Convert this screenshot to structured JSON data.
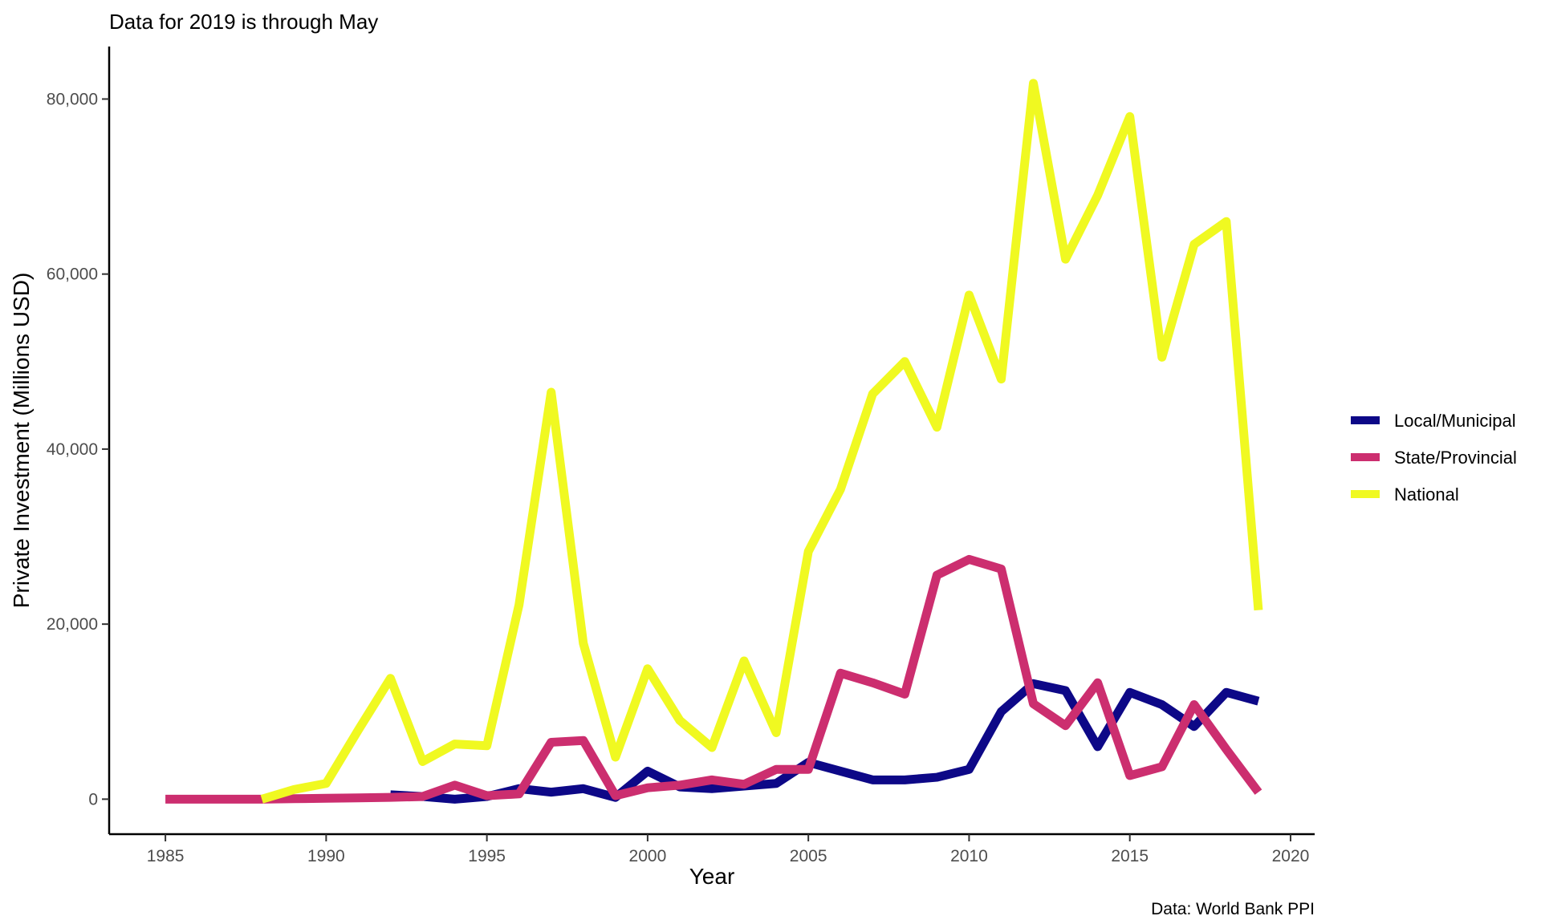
{
  "chart_data": {
    "type": "line",
    "title": "Data for 2019 is through May",
    "xlabel": "Year",
    "ylabel": "Private Investment (Millions USD)",
    "caption": "Data: World Bank PPI",
    "xlim": [
      1983.25,
      2020.75
    ],
    "ylim": [
      -4000,
      86000
    ],
    "x_ticks": [
      1985,
      1990,
      1995,
      2000,
      2005,
      2010,
      2015,
      2020
    ],
    "x_tick_labels": [
      "1985",
      "1990",
      "1995",
      "2000",
      "2005",
      "2010",
      "2015",
      "2020"
    ],
    "y_ticks": [
      0,
      20000,
      40000,
      60000,
      80000
    ],
    "y_tick_labels": [
      "0",
      "20,000",
      "40,000",
      "60,000",
      "80,000"
    ],
    "grid": false,
    "legend_position": "right",
    "series": [
      {
        "name": "Local/Municipal",
        "color": "#0d0887",
        "points": [
          [
            1992,
            500
          ],
          [
            1993,
            300
          ],
          [
            1994,
            0
          ],
          [
            1995,
            300
          ],
          [
            1996,
            1200
          ],
          [
            1997,
            800
          ],
          [
            1998,
            1200
          ],
          [
            1999,
            200
          ],
          [
            2000,
            3200
          ],
          [
            2001,
            1400
          ],
          [
            2002,
            1200
          ],
          [
            2003,
            1500
          ],
          [
            2004,
            1800
          ],
          [
            2005,
            4200
          ],
          [
            2006,
            3200
          ],
          [
            2007,
            2200
          ],
          [
            2008,
            2200
          ],
          [
            2009,
            2500
          ],
          [
            2010,
            3400
          ],
          [
            2011,
            10000
          ],
          [
            2012,
            13200
          ],
          [
            2013,
            12400
          ],
          [
            2014,
            6000
          ],
          [
            2015,
            12200
          ],
          [
            2016,
            10800
          ],
          [
            2017,
            8300
          ],
          [
            2018,
            12200
          ],
          [
            2019,
            11200
          ]
        ]
      },
      {
        "name": "State/Provincial",
        "color": "#cc2e6f",
        "points": [
          [
            1985,
            0
          ],
          [
            1986,
            0
          ],
          [
            1987,
            0
          ],
          [
            1988,
            0
          ],
          [
            1989,
            50
          ],
          [
            1990,
            100
          ],
          [
            1991,
            150
          ],
          [
            1992,
            200
          ],
          [
            1993,
            300
          ],
          [
            1994,
            1600
          ],
          [
            1995,
            400
          ],
          [
            1996,
            600
          ],
          [
            1997,
            6500
          ],
          [
            1998,
            6700
          ],
          [
            1999,
            400
          ],
          [
            2000,
            1300
          ],
          [
            2001,
            1600
          ],
          [
            2002,
            2200
          ],
          [
            2003,
            1700
          ],
          [
            2004,
            3400
          ],
          [
            2005,
            3400
          ],
          [
            2006,
            14400
          ],
          [
            2007,
            13300
          ],
          [
            2008,
            12000
          ],
          [
            2009,
            25600
          ],
          [
            2010,
            27400
          ],
          [
            2011,
            26300
          ],
          [
            2012,
            10900
          ],
          [
            2013,
            8400
          ],
          [
            2014,
            13300
          ],
          [
            2015,
            2700
          ],
          [
            2016,
            3700
          ],
          [
            2017,
            10800
          ],
          [
            2018,
            5700
          ],
          [
            2019,
            800
          ]
        ]
      },
      {
        "name": "National",
        "color": "#f0f921",
        "points": [
          [
            1988,
            0
          ],
          [
            1989,
            1100
          ],
          [
            1990,
            1800
          ],
          [
            1991,
            7900
          ],
          [
            1992,
            13800
          ],
          [
            1993,
            4300
          ],
          [
            1994,
            6300
          ],
          [
            1995,
            6100
          ],
          [
            1996,
            22200
          ],
          [
            1997,
            46500
          ],
          [
            1998,
            17800
          ],
          [
            1999,
            4800
          ],
          [
            2000,
            14900
          ],
          [
            2001,
            9000
          ],
          [
            2002,
            5900
          ],
          [
            2003,
            15800
          ],
          [
            2004,
            7600
          ],
          [
            2005,
            28300
          ],
          [
            2006,
            35400
          ],
          [
            2007,
            46300
          ],
          [
            2008,
            50000
          ],
          [
            2009,
            42500
          ],
          [
            2010,
            57600
          ],
          [
            2011,
            48000
          ],
          [
            2012,
            81800
          ],
          [
            2013,
            61700
          ],
          [
            2014,
            69000
          ],
          [
            2015,
            78000
          ],
          [
            2016,
            50500
          ],
          [
            2017,
            63400
          ],
          [
            2018,
            66000
          ],
          [
            2019,
            21600
          ]
        ]
      }
    ]
  }
}
